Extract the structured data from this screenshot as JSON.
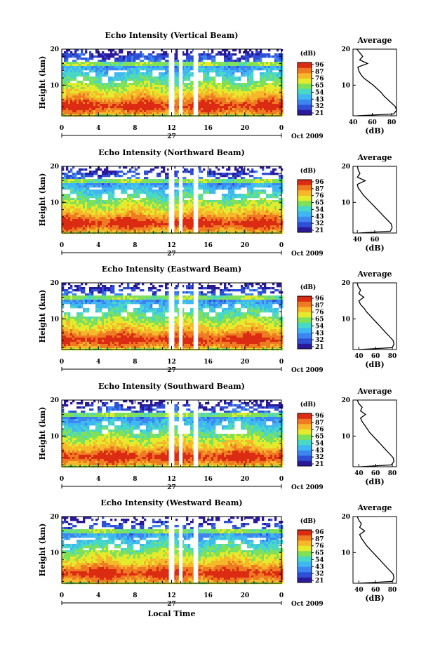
{
  "figure": {
    "xlabel": "Local Time",
    "date_label": "Oct 2009",
    "day_label": "27",
    "colorbar_unit": "(dB)",
    "avg_title": "Average",
    "avg_xlabel": "(dB)"
  },
  "colorbar": {
    "ticks": [
      "96",
      "87",
      "76",
      "65",
      "54",
      "43",
      "32",
      "21"
    ],
    "colors": [
      "#2a1a9a",
      "#2f4fd6",
      "#3d86ef",
      "#3fb7f2",
      "#49d8c6",
      "#7fe05a",
      "#e4ea2c",
      "#f6b72a",
      "#ee7a22",
      "#db2b12"
    ]
  },
  "chart_data": [
    {
      "type": "heatmap",
      "title": "Echo Intensity (Vertical Beam)",
      "ylabel": "Height (km)",
      "xlabel": "",
      "xlim": [
        0,
        24
      ],
      "ylim": [
        1.5,
        20
      ],
      "xticks": [
        "0",
        "4",
        "8",
        "12",
        "16",
        "20",
        "0"
      ],
      "yticks": [
        "20",
        "10"
      ],
      "value_range_db": [
        21,
        96
      ],
      "data_gaps_hours": [
        [
          11.7,
          12.3
        ],
        [
          12.8,
          13.2
        ],
        [
          14.4,
          14.9
        ]
      ],
      "average_profile": {
        "xlim": [
          40,
          85
        ],
        "xticks": [
          "40",
          "60",
          "80"
        ],
        "height_km": [
          1.5,
          2,
          3,
          4,
          5,
          6,
          7,
          8,
          9,
          10,
          11,
          12,
          13,
          14,
          15,
          16,
          17,
          18,
          19,
          20
        ],
        "db": [
          44,
          82,
          85,
          84,
          80,
          76,
          72,
          69,
          65,
          61,
          56,
          51,
          48,
          46,
          45,
          55,
          47,
          50,
          47,
          44
        ]
      }
    },
    {
      "type": "heatmap",
      "title": "Echo Intensity (Northward Beam)",
      "ylabel": "Height (km)",
      "xlabel": "",
      "xlim": [
        0,
        24
      ],
      "ylim": [
        1.5,
        20
      ],
      "xticks": [
        "0",
        "4",
        "8",
        "12",
        "16",
        "20",
        "0"
      ],
      "yticks": [
        "20",
        "10"
      ],
      "value_range_db": [
        21,
        96
      ],
      "data_gaps_hours": [
        [
          11.7,
          12.3
        ],
        [
          12.8,
          13.2
        ],
        [
          14.4,
          14.9
        ]
      ],
      "average_profile": {
        "xlim": [
          35,
          85
        ],
        "xticks": [
          "40",
          "60"
        ],
        "height_km": [
          1.5,
          2,
          3,
          4,
          5,
          6,
          7,
          8,
          9,
          10,
          11,
          12,
          13,
          14,
          15,
          16,
          17,
          18,
          19,
          20
        ],
        "db": [
          42,
          78,
          80,
          79,
          75,
          71,
          67,
          63,
          59,
          55,
          51,
          47,
          44,
          41,
          40,
          49,
          40,
          43,
          41,
          40
        ]
      }
    },
    {
      "type": "heatmap",
      "title": "Echo Intensity (Eastward Beam)",
      "ylabel": "Height (km)",
      "xlabel": "",
      "xlim": [
        0,
        24
      ],
      "ylim": [
        1.5,
        20
      ],
      "xticks": [
        "0",
        "4",
        "8",
        "12",
        "16",
        "20",
        "0"
      ],
      "yticks": [
        "20",
        "10"
      ],
      "value_range_db": [
        21,
        96
      ],
      "data_gaps_hours": [
        [
          11.7,
          12.3
        ],
        [
          12.8,
          13.2
        ],
        [
          14.4,
          14.9
        ]
      ],
      "average_profile": {
        "xlim": [
          33,
          85
        ],
        "xticks": [
          "40",
          "60",
          "80"
        ],
        "height_km": [
          1.5,
          2,
          3,
          4,
          5,
          6,
          7,
          8,
          9,
          10,
          11,
          12,
          13,
          14,
          15,
          16,
          17,
          18,
          19,
          20
        ],
        "db": [
          40,
          80,
          82,
          81,
          77,
          73,
          69,
          65,
          61,
          57,
          53,
          49,
          46,
          42,
          40,
          46,
          40,
          42,
          39,
          38
        ]
      }
    },
    {
      "type": "heatmap",
      "title": "Echo Intensity (Southward Beam)",
      "ylabel": "Height (km)",
      "xlabel": "",
      "xlim": [
        0,
        24
      ],
      "ylim": [
        1.5,
        20
      ],
      "xticks": [
        "0",
        "4",
        "8",
        "12",
        "16",
        "20",
        "0"
      ],
      "yticks": [
        "20",
        "10"
      ],
      "value_range_db": [
        21,
        96
      ],
      "data_gaps_hours": [
        [
          11.7,
          12.3
        ],
        [
          12.8,
          13.2
        ],
        [
          14.4,
          14.9
        ]
      ],
      "average_profile": {
        "xlim": [
          33,
          85
        ],
        "xticks": [
          "40",
          "60",
          "80"
        ],
        "height_km": [
          1.5,
          2,
          3,
          4,
          5,
          6,
          7,
          8,
          9,
          10,
          11,
          12,
          13,
          14,
          15,
          16,
          17,
          18,
          19,
          20
        ],
        "db": [
          42,
          79,
          82,
          81,
          77,
          73,
          69,
          65,
          61,
          57,
          53,
          50,
          47,
          44,
          42,
          48,
          42,
          44,
          40,
          38
        ]
      }
    },
    {
      "type": "heatmap",
      "title": "Echo Intensity (Westward Beam)",
      "ylabel": "Height (km)",
      "xlabel": "",
      "xlim": [
        0,
        24
      ],
      "ylim": [
        1.5,
        20
      ],
      "xticks": [
        "0",
        "4",
        "8",
        "12",
        "16",
        "20",
        "0"
      ],
      "yticks": [
        "20",
        "10"
      ],
      "value_range_db": [
        21,
        96
      ],
      "data_gaps_hours": [
        [
          11.7,
          12.3
        ],
        [
          12.8,
          13.2
        ],
        [
          14.4,
          14.9
        ]
      ],
      "average_profile": {
        "xlim": [
          33,
          85
        ],
        "xticks": [
          "40",
          "60",
          "80"
        ],
        "height_km": [
          1.5,
          2,
          3,
          4,
          5,
          6,
          7,
          8,
          9,
          10,
          11,
          12,
          13,
          14,
          15,
          16,
          17,
          18,
          19,
          20
        ],
        "db": [
          41,
          80,
          82,
          81,
          77,
          73,
          69,
          65,
          61,
          57,
          53,
          49,
          46,
          43,
          41,
          47,
          41,
          43,
          40,
          38
        ]
      }
    }
  ]
}
